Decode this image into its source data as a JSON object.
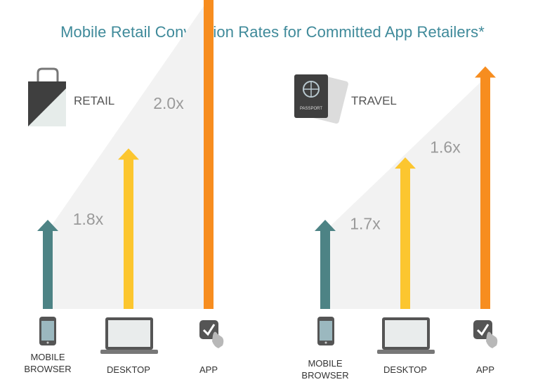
{
  "title": "Mobile Retail Conversion Rates for Committed App Retailers*",
  "colors": {
    "mobile": "#4d8385",
    "desktop": "#fcc62f",
    "app": "#f78d1f",
    "wedge": "#f2f2f2",
    "title": "#3f8a9a"
  },
  "chart_data": [
    {
      "type": "bar",
      "panel": "RETAIL",
      "icon": "shopping-bag-icon",
      "categories": [
        "MOBILE BROWSER",
        "DESKTOP",
        "APP"
      ],
      "category_icons": [
        "smartphone-icon",
        "laptop-icon",
        "tap-icon"
      ],
      "values": [
        1.0,
        1.8,
        3.6
      ],
      "ratio_labels": [
        "1.8x",
        "2.0x"
      ]
    },
    {
      "type": "bar",
      "panel": "TRAVEL",
      "icon": "passport-icon",
      "icon_text": "PASSPORT",
      "categories": [
        "MOBILE BROWSER",
        "DESKTOP",
        "APP"
      ],
      "category_icons": [
        "smartphone-icon",
        "laptop-icon",
        "tap-icon"
      ],
      "values": [
        1.0,
        1.7,
        2.72
      ],
      "ratio_labels": [
        "1.7x",
        "1.6x"
      ]
    }
  ]
}
